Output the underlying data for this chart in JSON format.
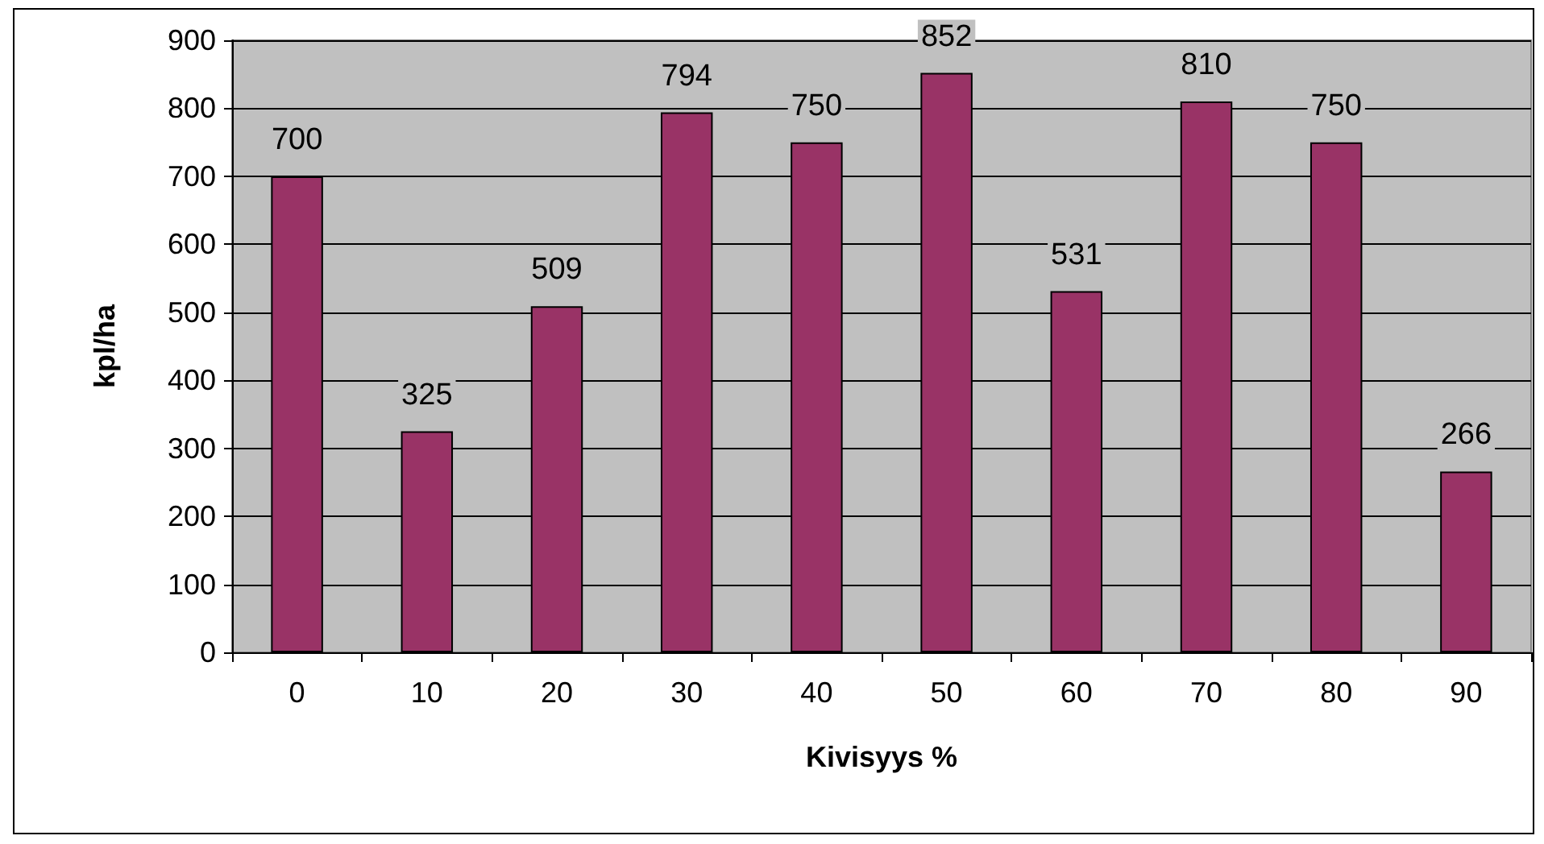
{
  "chart_data": {
    "type": "bar",
    "xlabel": "Kivisyys %",
    "ylabel": "kpl/ha",
    "categories": [
      "0",
      "10",
      "20",
      "30",
      "40",
      "50",
      "60",
      "70",
      "80",
      "90"
    ],
    "values": [
      700,
      325,
      509,
      794,
      750,
      852,
      531,
      810,
      750,
      266
    ],
    "color": "#993366",
    "ylim": [
      0,
      900
    ],
    "yticks": [
      0,
      100,
      200,
      300,
      400,
      500,
      600,
      700,
      800,
      900
    ],
    "grid": "y",
    "data_labels": true
  }
}
